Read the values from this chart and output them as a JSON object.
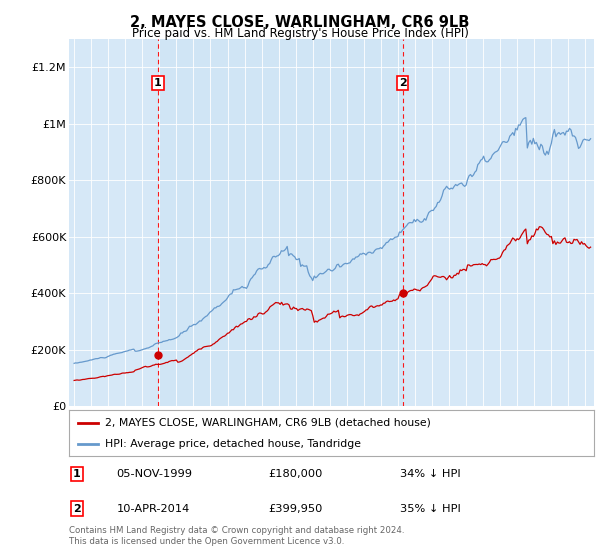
{
  "title": "2, MAYES CLOSE, WARLINGHAM, CR6 9LB",
  "subtitle": "Price paid vs. HM Land Registry's House Price Index (HPI)",
  "footnote": "Contains HM Land Registry data © Crown copyright and database right 2024.\nThis data is licensed under the Open Government Licence v3.0.",
  "legend_line1": "2, MAYES CLOSE, WARLINGHAM, CR6 9LB (detached house)",
  "legend_line2": "HPI: Average price, detached house, Tandridge",
  "transaction1_date": "05-NOV-1999",
  "transaction1_price": "£180,000",
  "transaction1_hpi": "34% ↓ HPI",
  "transaction2_date": "10-APR-2014",
  "transaction2_price": "£399,950",
  "transaction2_hpi": "35% ↓ HPI",
  "background_color": "#d6e8f7",
  "shaded_color": "#cce0f5",
  "red_line_color": "#cc0000",
  "blue_line_color": "#6699cc",
  "marker1_x": 1999.92,
  "marker1_y": 180000,
  "marker2_x": 2014.27,
  "marker2_y": 399950,
  "ylim": [
    0,
    1300000
  ],
  "xlim_start": 1994.7,
  "xlim_end": 2025.5,
  "yticks": [
    0,
    200000,
    400000,
    600000,
    800000,
    1000000,
    1200000
  ],
  "ylabels": [
    "£0",
    "£200K",
    "£400K",
    "£600K",
    "£800K",
    "£1M",
    "£1.2M"
  ]
}
